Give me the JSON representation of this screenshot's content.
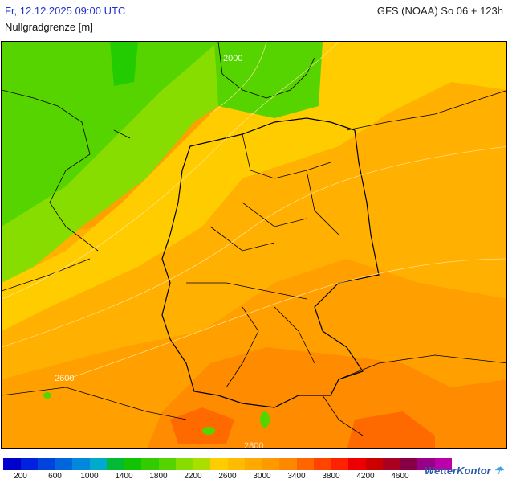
{
  "header": {
    "date": "Fr, 12.12.2025 09:00 UTC",
    "model": "GFS (NOAA) So 06 + 123h",
    "parameter": "Nullgradgrenze [m]"
  },
  "map": {
    "contour_labels": [
      "2000",
      "2600",
      "2800"
    ],
    "colors": {
      "green_dark": "#22cc00",
      "green_mid": "#55d400",
      "green_light": "#88dd00",
      "yellow": "#ffcc00",
      "orange_light": "#ffb000",
      "orange": "#ffa000",
      "orange_dark": "#ff8c00",
      "red_orange": "#ff6a00"
    }
  },
  "legend": {
    "colors": [
      "#0000cc",
      "#0022dd",
      "#0044dd",
      "#0066dd",
      "#0088dd",
      "#00aacc",
      "#00bb33",
      "#11c300",
      "#33cc00",
      "#55d400",
      "#88dd00",
      "#aadd00",
      "#ffcc00",
      "#ffbb00",
      "#ffaa00",
      "#ff9900",
      "#ff8800",
      "#ff6600",
      "#ff4400",
      "#ff2200",
      "#ee0000",
      "#cc0000",
      "#aa0022",
      "#880044",
      "#990088",
      "#bb00aa"
    ],
    "labels": [
      "200",
      "600",
      "1000",
      "1400",
      "1800",
      "2200",
      "2600",
      "3000",
      "3400",
      "3800",
      "4200",
      "4600"
    ]
  },
  "brand": {
    "name": "WetterKontor"
  }
}
